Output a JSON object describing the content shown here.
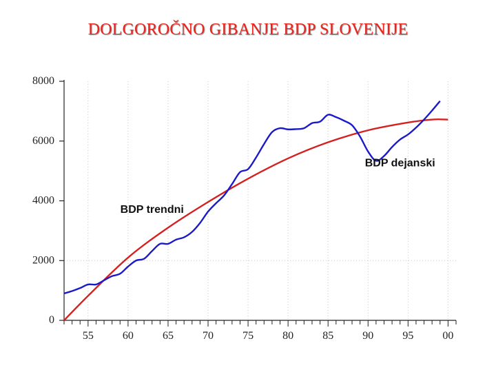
{
  "title": "DOLGOROČNO GIBANJE BDP SLOVENIJE",
  "colors": {
    "title": "#e8251e",
    "actual": "#1a1ac8",
    "trend": "#d42020",
    "axis": "#222222",
    "grid": "#c8c8c8"
  },
  "chart_data": {
    "type": "line",
    "title": "DOLGOROČNO GIBANJE BDP SLOVENIJE",
    "xlabel": "",
    "ylabel": "",
    "xlim": [
      1952,
      2001
    ],
    "ylim": [
      0,
      8000
    ],
    "y_ticks": [
      0,
      2000,
      4000,
      6000,
      8000
    ],
    "y_tick_labels": [
      "0",
      "2000",
      "4000",
      "6000",
      "8000"
    ],
    "x_ticks": [
      1955,
      1960,
      1965,
      1970,
      1975,
      1980,
      1985,
      1990,
      1995,
      2000
    ],
    "x_tick_labels": [
      "55",
      "60",
      "65",
      "70",
      "75",
      "80",
      "85",
      "90",
      "95",
      "00"
    ],
    "grid": "dotted vertical lines at every 5 years, dotted horizontal line at 2000",
    "series": [
      {
        "name": "BDP dejanski",
        "x": [
          1952,
          1953,
          1954,
          1955,
          1956,
          1957,
          1958,
          1959,
          1960,
          1961,
          1962,
          1963,
          1964,
          1965,
          1966,
          1967,
          1968,
          1969,
          1970,
          1971,
          1972,
          1973,
          1974,
          1975,
          1976,
          1977,
          1978,
          1979,
          1980,
          1981,
          1982,
          1983,
          1984,
          1985,
          1986,
          1987,
          1988,
          1989,
          1990,
          1991,
          1992,
          1993,
          1994,
          1995,
          1996,
          1997,
          1998,
          1999,
          2000
        ],
        "values": [
          900,
          980,
          1080,
          1200,
          1200,
          1340,
          1480,
          1560,
          1800,
          2000,
          2060,
          2320,
          2560,
          2560,
          2700,
          2780,
          2960,
          3260,
          3640,
          3920,
          4180,
          4560,
          4960,
          5060,
          5450,
          5900,
          6300,
          6430,
          6390,
          6400,
          6430,
          6600,
          6650,
          6880,
          6800,
          6680,
          6530,
          6150,
          5650,
          5340,
          5500,
          5800,
          6050,
          6220,
          6450,
          6720,
          7020,
          7340,
          null
        ]
      },
      {
        "name": "BDP trendni",
        "x": [
          1952,
          1955,
          1960,
          1965,
          1970,
          1975,
          1980,
          1985,
          1990,
          1995,
          1998,
          2000
        ],
        "values": [
          0,
          820,
          2100,
          3100,
          3960,
          4740,
          5420,
          5960,
          6360,
          6620,
          6720,
          6720
        ]
      }
    ],
    "annotations": [
      {
        "text": "BDP dejanski",
        "series": "BDP dejanski",
        "x": 1994,
        "y": 5150
      },
      {
        "text": "BDP trendni",
        "series": "BDP trendni",
        "x": 1963,
        "y": 3600
      }
    ]
  }
}
